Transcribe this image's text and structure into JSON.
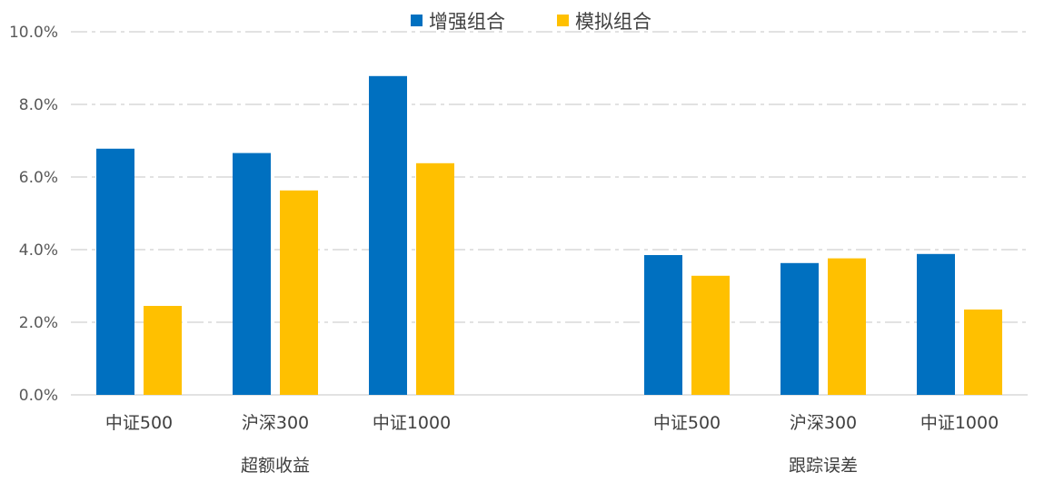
{
  "chart_data": {
    "type": "bar",
    "legend_position": "top-center",
    "grid": true,
    "ylim": [
      0,
      10
    ],
    "y_ticks": [
      "0.0%",
      "2.0%",
      "4.0%",
      "6.0%",
      "8.0%",
      "10.0%"
    ],
    "groups": [
      {
        "label": "超额收益",
        "categories": [
          "中证500",
          "沪深300",
          "中证1000"
        ]
      },
      {
        "label": "跟踪误差",
        "categories": [
          "中证500",
          "沪深300",
          "中证1000"
        ]
      }
    ],
    "series": [
      {
        "name": "增强组合",
        "color": "#0070C0",
        "values": [
          6.78,
          6.66,
          8.78,
          3.85,
          3.63,
          3.88
        ]
      },
      {
        "name": "模拟组合",
        "color": "#FFC000",
        "values": [
          2.45,
          5.63,
          6.38,
          3.28,
          3.76,
          2.35
        ]
      }
    ]
  }
}
